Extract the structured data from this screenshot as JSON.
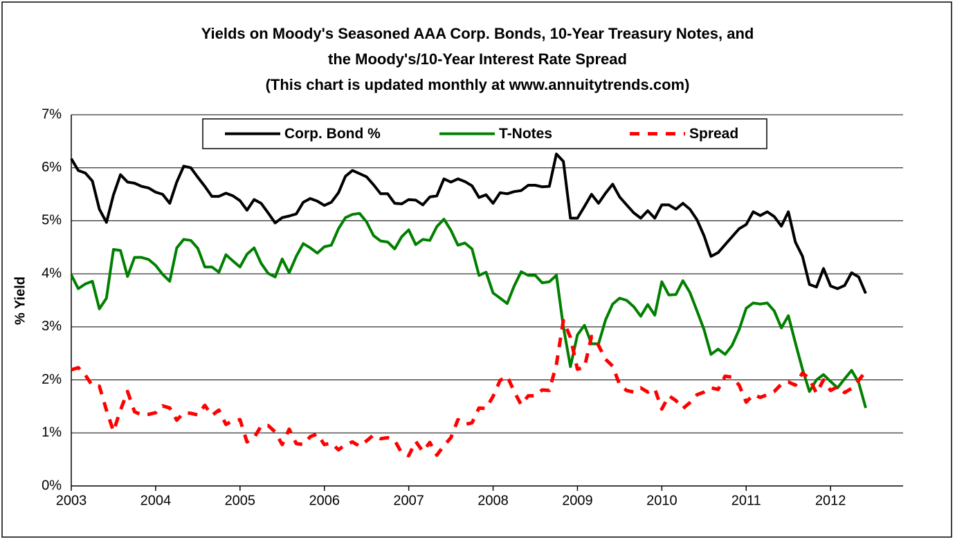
{
  "chart_data": {
    "type": "line",
    "title": [
      "Yields on Moody's Seasoned AAA Corp. Bonds, 10-Year Treasury Notes, and",
      "the Moody's/10-Year Interest Rate Spread"
    ],
    "subtitle": "(This chart is updated monthly at www.annuitytrends.com)",
    "y_label": "% Yield",
    "xlim": [
      2003,
      2012.86
    ],
    "xticks": [
      2003,
      2004,
      2005,
      2006,
      2007,
      2008,
      2009,
      2010,
      2011,
      2012
    ],
    "ylim": [
      0,
      7
    ],
    "yticks": [
      {
        "value": 0,
        "label": "0%"
      },
      {
        "value": 1,
        "label": "1%"
      },
      {
        "value": 2,
        "label": "2%"
      },
      {
        "value": 3,
        "label": "3%"
      },
      {
        "value": 4,
        "label": "4%"
      },
      {
        "value": 5,
        "label": "5%"
      },
      {
        "value": 6,
        "label": "6%"
      },
      {
        "value": 7,
        "label": "7%"
      }
    ],
    "grid": true,
    "legend": "top",
    "x": [
      2003,
      2003.083,
      2003.167,
      2003.25,
      2003.333,
      2003.417,
      2003.5,
      2003.583,
      2003.667,
      2003.75,
      2003.833,
      2003.917,
      2004,
      2004.083,
      2004.167,
      2004.25,
      2004.333,
      2004.417,
      2004.5,
      2004.583,
      2004.667,
      2004.75,
      2004.833,
      2004.917,
      2005,
      2005.083,
      2005.167,
      2005.25,
      2005.333,
      2005.417,
      2005.5,
      2005.583,
      2005.667,
      2005.75,
      2005.833,
      2005.917,
      2006,
      2006.083,
      2006.167,
      2006.25,
      2006.333,
      2006.417,
      2006.5,
      2006.583,
      2006.667,
      2006.75,
      2006.833,
      2006.917,
      2007,
      2007.083,
      2007.167,
      2007.25,
      2007.333,
      2007.417,
      2007.5,
      2007.583,
      2007.667,
      2007.75,
      2007.833,
      2007.917,
      2008,
      2008.083,
      2008.167,
      2008.25,
      2008.333,
      2008.417,
      2008.5,
      2008.583,
      2008.667,
      2008.75,
      2008.833,
      2008.917,
      2009,
      2009.083,
      2009.167,
      2009.25,
      2009.333,
      2009.417,
      2009.5,
      2009.583,
      2009.667,
      2009.75,
      2009.833,
      2009.917,
      2010,
      2010.083,
      2010.167,
      2010.25,
      2010.333,
      2010.417,
      2010.5,
      2010.583,
      2010.667,
      2010.75,
      2010.833,
      2010.917,
      2011,
      2011.083,
      2011.167,
      2011.25,
      2011.333,
      2011.417,
      2011.5,
      2011.583,
      2011.667,
      2011.75,
      2011.833,
      2011.917,
      2012,
      2012.083,
      2012.167,
      2012.25,
      2012.333,
      2012.417
    ],
    "series": [
      {
        "name": "Corp. Bond %",
        "color": "#000000",
        "dash": false,
        "values": [
          6.17,
          5.95,
          5.9,
          5.75,
          5.22,
          4.97,
          5.49,
          5.87,
          5.73,
          5.71,
          5.65,
          5.62,
          5.54,
          5.5,
          5.33,
          5.73,
          6.03,
          6.0,
          5.82,
          5.65,
          5.46,
          5.46,
          5.52,
          5.47,
          5.38,
          5.2,
          5.4,
          5.33,
          5.15,
          4.96,
          5.06,
          5.09,
          5.13,
          5.35,
          5.42,
          5.37,
          5.29,
          5.35,
          5.53,
          5.84,
          5.95,
          5.89,
          5.83,
          5.68,
          5.51,
          5.51,
          5.33,
          5.32,
          5.4,
          5.39,
          5.3,
          5.45,
          5.47,
          5.79,
          5.73,
          5.79,
          5.74,
          5.66,
          5.44,
          5.49,
          5.33,
          5.53,
          5.51,
          5.55,
          5.57,
          5.67,
          5.67,
          5.64,
          5.65,
          6.26,
          6.12,
          5.05,
          5.05,
          5.27,
          5.5,
          5.33,
          5.52,
          5.69,
          5.45,
          5.3,
          5.15,
          5.05,
          5.19,
          5.05,
          5.3,
          5.3,
          5.22,
          5.33,
          5.22,
          5.02,
          4.72,
          4.33,
          4.4,
          4.55,
          4.7,
          4.85,
          4.93,
          5.17,
          5.1,
          5.17,
          5.08,
          4.9,
          5.17,
          4.6,
          4.33,
          3.8,
          3.75,
          4.1,
          3.77,
          3.72,
          3.78,
          4.02,
          3.94,
          3.63
        ]
      },
      {
        "name": "T-Notes",
        "color": "#008000",
        "dash": false,
        "values": [
          3.98,
          3.72,
          3.81,
          3.86,
          3.34,
          3.54,
          4.46,
          4.44,
          3.95,
          4.31,
          4.31,
          4.27,
          4.16,
          3.99,
          3.86,
          4.49,
          4.65,
          4.63,
          4.48,
          4.13,
          4.13,
          4.03,
          4.36,
          4.24,
          4.13,
          4.37,
          4.49,
          4.2,
          4.01,
          3.94,
          4.28,
          4.02,
          4.33,
          4.57,
          4.49,
          4.39,
          4.51,
          4.54,
          4.85,
          5.06,
          5.12,
          5.14,
          4.98,
          4.72,
          4.62,
          4.6,
          4.47,
          4.7,
          4.83,
          4.55,
          4.65,
          4.63,
          4.89,
          5.03,
          4.82,
          4.54,
          4.58,
          4.47,
          3.97,
          4.03,
          3.64,
          3.54,
          3.44,
          3.77,
          4.04,
          3.97,
          3.97,
          3.83,
          3.85,
          3.97,
          3.0,
          2.25,
          2.85,
          3.03,
          2.68,
          2.68,
          3.13,
          3.43,
          3.54,
          3.5,
          3.38,
          3.2,
          3.42,
          3.22,
          3.85,
          3.6,
          3.61,
          3.87,
          3.65,
          3.3,
          2.95,
          2.48,
          2.58,
          2.48,
          2.65,
          2.95,
          3.35,
          3.45,
          3.43,
          3.45,
          3.3,
          2.98,
          3.21,
          2.7,
          2.2,
          1.78,
          2.0,
          2.1,
          1.97,
          1.85,
          2.02,
          2.18,
          1.95,
          1.47
        ]
      },
      {
        "name": "Spread",
        "color": "#ff0000",
        "dash": true,
        "values": [
          2.19,
          2.23,
          2.09,
          1.89,
          1.88,
          1.43,
          1.03,
          1.43,
          1.78,
          1.4,
          1.34,
          1.35,
          1.38,
          1.51,
          1.47,
          1.24,
          1.38,
          1.37,
          1.34,
          1.52,
          1.33,
          1.43,
          1.16,
          1.23,
          1.25,
          0.83,
          0.91,
          1.13,
          1.14,
          1.02,
          0.78,
          1.07,
          0.8,
          0.78,
          0.93,
          0.98,
          0.78,
          0.81,
          0.68,
          0.78,
          0.83,
          0.75,
          0.85,
          0.96,
          0.89,
          0.91,
          0.86,
          0.62,
          0.57,
          0.84,
          0.65,
          0.82,
          0.58,
          0.76,
          0.91,
          1.25,
          1.16,
          1.19,
          1.47,
          1.46,
          1.69,
          1.99,
          2.07,
          1.78,
          1.53,
          1.7,
          1.7,
          1.81,
          1.8,
          2.29,
          3.12,
          2.8,
          2.2,
          2.24,
          2.82,
          2.65,
          2.39,
          2.26,
          1.91,
          1.8,
          1.77,
          1.85,
          1.77,
          1.83,
          1.45,
          1.7,
          1.61,
          1.46,
          1.57,
          1.72,
          1.77,
          1.85,
          1.82,
          2.07,
          2.05,
          1.9,
          1.58,
          1.72,
          1.67,
          1.72,
          1.78,
          1.92,
          1.96,
          1.9,
          2.13,
          2.02,
          1.75,
          2.0,
          1.8,
          1.87,
          1.76,
          1.84,
          1.99,
          2.16
        ]
      }
    ]
  }
}
